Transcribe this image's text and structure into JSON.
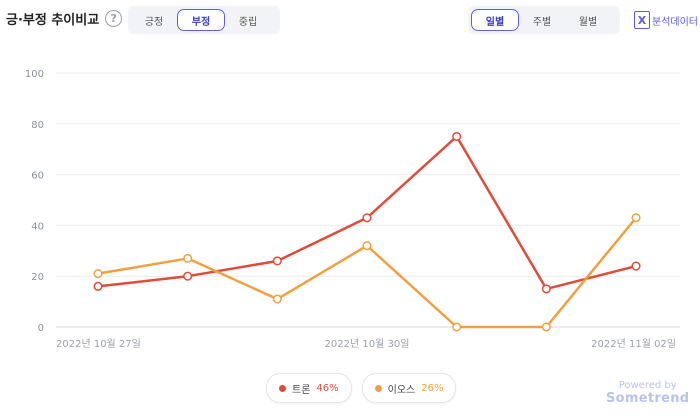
{
  "header": {
    "title": "긍·부정 추이비교",
    "help_icon": "?",
    "sentiment_tabs": [
      {
        "label": "긍정",
        "active": false
      },
      {
        "label": "부정",
        "active": true
      },
      {
        "label": "중립",
        "active": false
      }
    ],
    "period_tabs": [
      {
        "label": "일별",
        "active": true
      },
      {
        "label": "주별",
        "active": false
      },
      {
        "label": "월별",
        "active": false
      }
    ],
    "excel_icon": "X",
    "excel_label": "분석데이터"
  },
  "legend": {
    "items": [
      {
        "name": "트론",
        "pct": "46%",
        "color": "#e04b3a"
      },
      {
        "name": "이오스",
        "pct": "26%",
        "color": "#f0a040"
      }
    ]
  },
  "branding": {
    "line1": "Powered by",
    "line2": "Sometrend"
  },
  "chart_data": {
    "type": "line",
    "y_ticks": [
      "0",
      "20",
      "40",
      "60",
      "80",
      "100"
    ],
    "ylim": [
      0,
      100
    ],
    "x_tick_labels": [
      "2022년 10월 27일",
      "2022년 10월 30일",
      "2022년 11월 02일"
    ],
    "x_tick_positions": [
      0,
      3,
      6
    ],
    "x": [
      0,
      1,
      2,
      3,
      4,
      5,
      6
    ],
    "series": [
      {
        "name": "트론",
        "color": "#e04b3a",
        "values": [
          16,
          20,
          26,
          43,
          75,
          15,
          24
        ]
      },
      {
        "name": "이오스",
        "color": "#f0a040",
        "values": [
          21,
          27,
          11,
          32,
          0,
          0,
          43
        ]
      }
    ],
    "grid": true
  }
}
